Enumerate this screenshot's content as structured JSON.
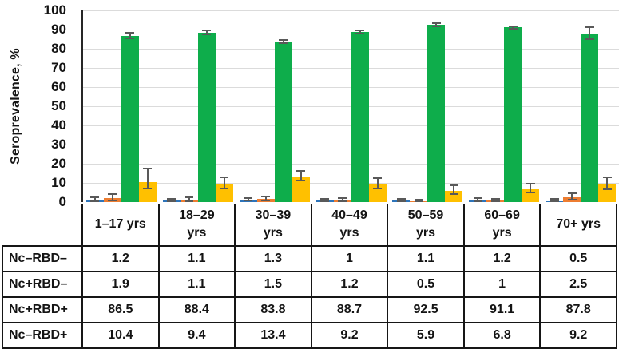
{
  "chart_data": {
    "type": "bar",
    "title": "",
    "xlabel": "",
    "ylabel": "Seroprevalence, %",
    "ylim": [
      0,
      100
    ],
    "ytick_step": 10,
    "grid": true,
    "legend_position": "table-below-chart",
    "gridline_color": "#DBDBDB",
    "axis_color": "#262626",
    "error_bar_color": "#595959",
    "categories": [
      "1–17 yrs",
      "18–29\nyrs",
      "30–39\nyrs",
      "40–49\nyrs",
      "50–59\nyrs",
      "60–69\nyrs",
      "70+ yrs"
    ],
    "series": [
      {
        "name": "Nc–RBD–",
        "color": "#2E74B9",
        "values": [
          1.2,
          1.1,
          1.3,
          1,
          1.1,
          1.2,
          0.5
        ],
        "err_up": [
          1.6,
          1.2,
          1.2,
          1.0,
          1.0,
          1.3,
          1.4
        ],
        "err_dn": [
          1.0,
          0.9,
          1.0,
          0.8,
          0.9,
          1.0,
          0.5
        ]
      },
      {
        "name": "Nc+RBD–",
        "color": "#ED7D31",
        "values": [
          1.9,
          1.1,
          1.5,
          1.2,
          0.5,
          1,
          2.5
        ],
        "err_up": [
          2.5,
          2.0,
          1.8,
          1.5,
          1.0,
          1.0,
          2.4
        ],
        "err_dn": [
          1.5,
          1.0,
          1.2,
          1.0,
          0.5,
          0.8,
          1.8
        ]
      },
      {
        "name": "Nc+RBD+",
        "color": "#0EAD4B",
        "values": [
          86.5,
          88.4,
          83.8,
          88.7,
          92.5,
          91.1,
          87.8
        ],
        "err_up": [
          2.2,
          1.8,
          1.4,
          1.4,
          1.3,
          1.2,
          3.8
        ],
        "err_dn": [
          1.6,
          1.4,
          1.2,
          1.2,
          1.1,
          1.0,
          3.2
        ]
      },
      {
        "name": "Nc–RBD+",
        "color": "#FFC000",
        "values": [
          10.4,
          9.4,
          13.4,
          9.2,
          5.9,
          6.8,
          9.2
        ],
        "err_up": [
          7.5,
          4.0,
          3.4,
          3.7,
          3.3,
          3.2,
          4.1
        ],
        "err_dn": [
          3.9,
          2.8,
          2.6,
          2.6,
          2.2,
          2.4,
          3.0
        ]
      }
    ]
  },
  "table": {
    "rows": [
      {
        "label": "Nc–RBD–",
        "cells": [
          "1.2",
          "1.1",
          "1.3",
          "1",
          "1.1",
          "1.2",
          "0.5"
        ]
      },
      {
        "label": "Nc+RBD–",
        "cells": [
          "1.9",
          "1.1",
          "1.5",
          "1.2",
          "0.5",
          "1",
          "2.5"
        ]
      },
      {
        "label": "Nc+RBD+",
        "cells": [
          "86.5",
          "88.4",
          "83.8",
          "88.7",
          "92.5",
          "91.1",
          "87.8"
        ]
      },
      {
        "label": "Nc–RBD+",
        "cells": [
          "10.4",
          "9.4",
          "13.4",
          "9.2",
          "5.9",
          "6.8",
          "9.2"
        ]
      }
    ]
  }
}
